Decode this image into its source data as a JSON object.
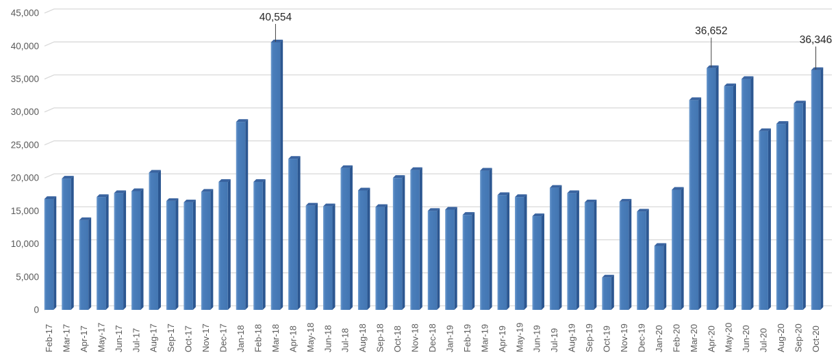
{
  "chart_data": {
    "type": "bar",
    "style": "3d-clustered-column",
    "title": "",
    "xlabel": "",
    "ylabel": "",
    "legend": "none",
    "grid": true,
    "ylim": [
      0,
      45000
    ],
    "ytick_step": 5000,
    "ytick_labels": [
      "0",
      "5,000",
      "10,000",
      "15,000",
      "20,000",
      "25,000",
      "30,000",
      "35,000",
      "40,000",
      "45,000"
    ],
    "categories": [
      "Feb-17",
      "Mar-17",
      "Apr-17",
      "May-17",
      "Jun-17",
      "Jul-17",
      "Aug-17",
      "Sep-17",
      "Oct-17",
      "Nov-17",
      "Dec-17",
      "Jan-18",
      "Feb-18",
      "Mar-18",
      "Apr-18",
      "May-18",
      "Jun-18",
      "Jul-18",
      "Aug-18",
      "Sep-18",
      "Oct-18",
      "Nov-18",
      "Dec-18",
      "Jan-19",
      "Feb-19",
      "Mar-19",
      "Apr-19",
      "May-19",
      "Jun-19",
      "Jul-19",
      "Aug-19",
      "Sep-19",
      "Oct-19",
      "Nov-19",
      "Dec-19",
      "Jan-20",
      "Feb-20",
      "Mar-20",
      "Apr-20",
      "May-20",
      "Jun-20",
      "Jul-20",
      "Aug-20",
      "Sep-20",
      "Oct-20"
    ],
    "values": [
      16800,
      19900,
      13600,
      17100,
      17700,
      18000,
      20800,
      16500,
      16300,
      17900,
      19400,
      28500,
      19400,
      40554,
      22900,
      15800,
      15700,
      21500,
      18100,
      15600,
      20000,
      21200,
      15000,
      15200,
      14400,
      21100,
      17400,
      17100,
      14200,
      18500,
      17700,
      16300,
      4900,
      16400,
      14900,
      9700,
      18200,
      31800,
      36652,
      33900,
      35000,
      27100,
      28200,
      31300,
      36346
    ],
    "annotations": [
      {
        "category": "Mar-18",
        "label": "40,554"
      },
      {
        "category": "Apr-20",
        "label": "36,652"
      },
      {
        "category": "Oct-20",
        "label": "36,346"
      }
    ],
    "colors": {
      "bar_front": "#4a7ebb",
      "bar_front_highlight": "#6f9ccf",
      "bar_front_shade": "#4376b2",
      "bar_side": "#2c5791",
      "bar_top": "#3a64a0",
      "gridline": "#d9d9d9",
      "axis_text": "#595959",
      "annotation_text": "#262626",
      "leader_line": "#404040",
      "background": "#ffffff"
    }
  }
}
